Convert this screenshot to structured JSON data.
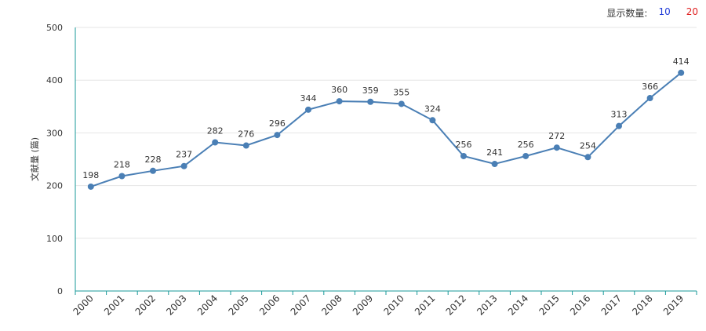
{
  "toolbar": {
    "label": "显示数量:",
    "option_a": "10",
    "option_a_color": "#1f3bd8",
    "option_b": "20",
    "option_b_color": "#e02020"
  },
  "colors": {
    "line": "#4a7fb5",
    "axis": "#1a9a9a",
    "grid": "#e6e6e6",
    "label": "#333333"
  },
  "chart_data": {
    "type": "line",
    "title": "",
    "xlabel": "",
    "ylabel": "文献量 (篇)",
    "ylim": [
      0,
      500
    ],
    "yticks": [
      0,
      100,
      200,
      300,
      400,
      500
    ],
    "grid": true,
    "categories": [
      "2000",
      "2001",
      "2002",
      "2003",
      "2004",
      "2005",
      "2006",
      "2007",
      "2008",
      "2009",
      "2010",
      "2011",
      "2012",
      "2013",
      "2014",
      "2015",
      "2016",
      "2017",
      "2018",
      "2019"
    ],
    "series": [
      {
        "values": [
          198,
          218,
          228,
          237,
          282,
          276,
          296,
          344,
          360,
          359,
          355,
          324,
          256,
          241,
          256,
          272,
          254,
          313,
          366,
          414
        ]
      }
    ]
  }
}
